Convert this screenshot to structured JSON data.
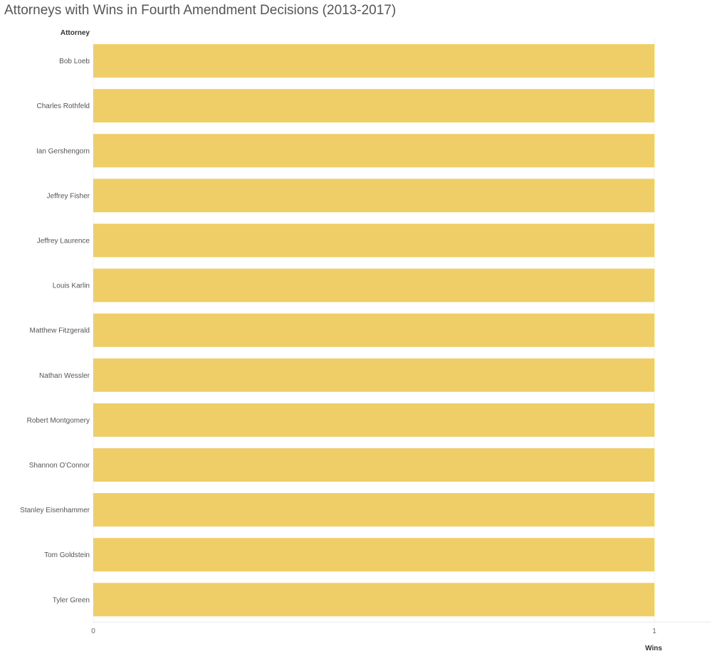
{
  "chart_data": {
    "type": "bar",
    "orientation": "horizontal",
    "title": "Attorneys with Wins in Fourth Amendment Decisions (2013-2017)",
    "ylabel": "Attorney",
    "xlabel": "Wins",
    "categories": [
      "Bob Loeb",
      "Charles Rothfeld",
      "Ian Gershengorn",
      "Jeffrey Fisher",
      "Jeffrey Laurence",
      "Louis Karlin",
      "Matthew Fitzgerald",
      "Nathan Wessler",
      "Robert Montgomery",
      "Shannon O'Connor",
      "Stanley Eisenhammer",
      "Tom Goldstein",
      "Tyler Green"
    ],
    "values": [
      1,
      1,
      1,
      1,
      1,
      1,
      1,
      1,
      1,
      1,
      1,
      1,
      1
    ],
    "xlim": [
      0,
      1.1
    ],
    "xticks": [
      "0",
      "1"
    ],
    "grid": false,
    "bar_color": "#EFCD67"
  }
}
